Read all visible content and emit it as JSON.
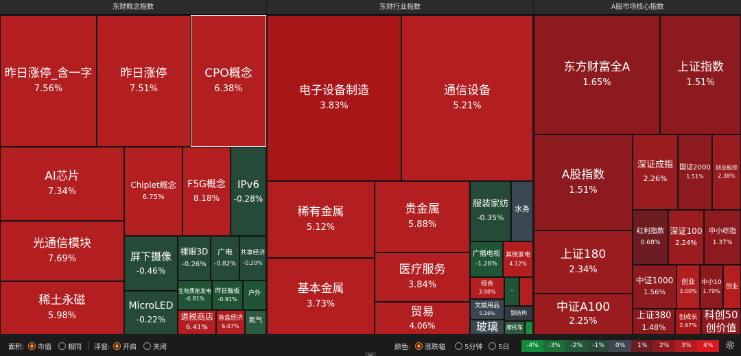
{
  "panels": {
    "concept": {
      "title": "东财概念指数"
    },
    "industry": {
      "title": "东财行业指数"
    },
    "core": {
      "title": "A股市场核心指数"
    }
  },
  "concept_tiles": [
    {
      "name": "昨日涨停_含一字",
      "pct": "7.56%"
    },
    {
      "name": "昨日涨停",
      "pct": "7.51%"
    },
    {
      "name": "CPO概念",
      "pct": "6.38%"
    },
    {
      "name": "AI芯片",
      "pct": "7.34%"
    },
    {
      "name": "Chiplet概念",
      "pct": "6.75%"
    },
    {
      "name": "F5G概念",
      "pct": "8.18%"
    },
    {
      "name": "IPv6",
      "pct": "-0.28%"
    },
    {
      "name": "光通信模块",
      "pct": "7.69%"
    },
    {
      "name": "屏下摄像",
      "pct": "-0.46%"
    },
    {
      "name": "裸眼3D",
      "pct": "-0.26%"
    },
    {
      "name": "广电",
      "pct": "-0.82%"
    },
    {
      "name": "共享经济",
      "pct": "-0.20%"
    },
    {
      "name": "稀土永磁",
      "pct": "5.98%"
    },
    {
      "name": "生物质能发电",
      "pct": "-0.81%"
    },
    {
      "name": "昨日触板",
      "pct": "-0.91%"
    },
    {
      "name": "户外",
      "pct": ""
    },
    {
      "name": "MicroLED",
      "pct": "-0.22%"
    },
    {
      "name": "退税商店",
      "pct": "6.41%"
    },
    {
      "name": "盲盒经济",
      "pct": "6.07%"
    },
    {
      "name": "氮气",
      "pct": ""
    }
  ],
  "industry_tiles": [
    {
      "name": "电子设备制造",
      "pct": "3.83%"
    },
    {
      "name": "通信设备",
      "pct": "5.21%"
    },
    {
      "name": "稀有金属",
      "pct": "5.12%"
    },
    {
      "name": "贵金属",
      "pct": "5.88%"
    },
    {
      "name": "服装家纺",
      "pct": "-0.35%"
    },
    {
      "name": "水务",
      "pct": ""
    },
    {
      "name": "广播电视",
      "pct": "-1.28%"
    },
    {
      "name": "其他家电",
      "pct": "4.12%"
    },
    {
      "name": "基本金属",
      "pct": "3.73%"
    },
    {
      "name": "医疗服务",
      "pct": "3.84%"
    },
    {
      "name": "综合",
      "pct": "3.98%"
    },
    {
      "name": "文娱用品",
      "pct": "0.16%"
    },
    {
      "name": "钢结构",
      "pct": ""
    },
    {
      "name": "贸易",
      "pct": "4.06%"
    },
    {
      "name": "玻璃",
      "pct": ""
    },
    {
      "name": "摩托车",
      "pct": ""
    }
  ],
  "core_tiles": [
    {
      "name": "东方财富全A",
      "pct": "1.65%"
    },
    {
      "name": "上证指数",
      "pct": "1.51%"
    },
    {
      "name": "A股指数",
      "pct": "1.51%"
    },
    {
      "name": "深证成指",
      "pct": "2.26%"
    },
    {
      "name": "国证2000",
      "pct": "1.51%"
    },
    {
      "name": "创业板综",
      "pct": "2.38%"
    },
    {
      "name": "红利指数",
      "pct": "0.68%"
    },
    {
      "name": "深证100",
      "pct": "2.24%"
    },
    {
      "name": "中小综指",
      "pct": "1.37%"
    },
    {
      "name": "上证180",
      "pct": "2.34%"
    },
    {
      "name": "中证1000",
      "pct": "1.56%"
    },
    {
      "name": "创业",
      "pct": "3.00%"
    },
    {
      "name": "中小10",
      "pct": "1.79%"
    },
    {
      "name": "创业",
      "pct": ""
    },
    {
      "name": "中证A100",
      "pct": "2.25%"
    },
    {
      "name": "上证380",
      "pct": "1.48%"
    },
    {
      "name": "创成长",
      "pct": "2.97%"
    },
    {
      "name": "科创50",
      "pct": ""
    },
    {
      "name": "创价值",
      "pct": ""
    }
  ],
  "bottom": {
    "area_label": "面积:",
    "area_opt1": "市值",
    "area_opt2": "相同",
    "float_label": "浮窗:",
    "float_opt1": "开启",
    "float_opt2": "关闭",
    "color_label": "颜色:",
    "color_opt1": "涨跌幅",
    "color_opt2": "5分钟",
    "color_opt3": "5日",
    "legend": [
      {
        "label": "-4%",
        "color": "#138c3a"
      },
      {
        "label": "-3%",
        "color": "#1b6e36"
      },
      {
        "label": "-2%",
        "color": "#22593a"
      },
      {
        "label": "-1%",
        "color": "#2b4a3a"
      },
      {
        "label": "0%",
        "color": "#3d4651"
      },
      {
        "label": "1%",
        "color": "#6b1d24"
      },
      {
        "label": "2%",
        "color": "#8e1a20"
      },
      {
        "label": "3%",
        "color": "#b21b1f"
      },
      {
        "label": "4%",
        "color": "#d7191d"
      }
    ]
  }
}
